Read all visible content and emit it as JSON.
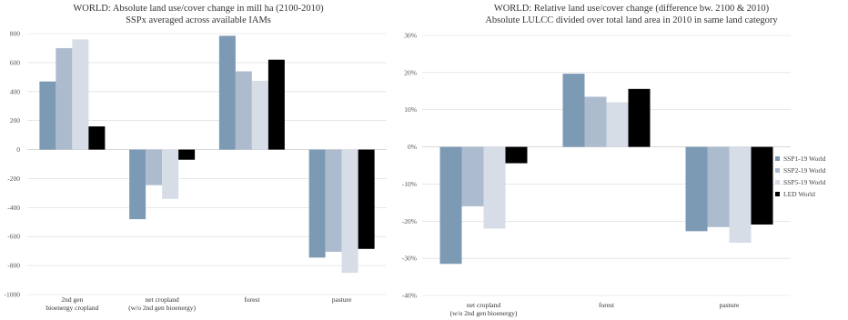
{
  "colors": {
    "SSP1-19 World": "#7d9ab5",
    "SSP2-19 World": "#adbbcf",
    "SSP5-19 World": "#d6dde7",
    "LED World": "#000000",
    "grid": "#d9d9d9",
    "axis": "#bfbfbf"
  },
  "chart_data": [
    {
      "type": "bar",
      "title": "WORLD: Absolute land use/cover change in mill ha (2100-2010)",
      "subtitle": "SSPx averaged across available IAMs",
      "categories": [
        "2nd gen\nbioenergy cropland",
        "net cropland\n(w/o 2nd gen bioenergy)",
        "forest",
        "pasture"
      ],
      "series": [
        {
          "name": "SSP1-19 World",
          "values": [
            470,
            -480,
            785,
            -745
          ]
        },
        {
          "name": "SSP2-19 World",
          "values": [
            700,
            -245,
            540,
            -705
          ]
        },
        {
          "name": "SSP5-19 World",
          "values": [
            760,
            -340,
            475,
            -850
          ]
        },
        {
          "name": "LED World",
          "values": [
            160,
            -70,
            620,
            -685
          ]
        }
      ],
      "yticks": [
        "800",
        "600",
        "400",
        "200",
        "0",
        "-200",
        "-400",
        "-600",
        "-800",
        "-1000"
      ],
      "ylim": [
        -1000,
        800
      ],
      "grid": true
    },
    {
      "type": "bar",
      "title": "WORLD: Relative land use/cover change (difference bw. 2100 & 2010)",
      "subtitle": "Absolute LULCC divided over total land area in 2010 in same land category",
      "categories": [
        "net cropland\n(w/o 2nd gen bioenergy)",
        "forest",
        "pasture"
      ],
      "series": [
        {
          "name": "SSP1-19 World",
          "values": [
            -31.5,
            19.7,
            -22.7
          ]
        },
        {
          "name": "SSP2-19 World",
          "values": [
            -16.0,
            13.5,
            -21.6
          ]
        },
        {
          "name": "SSP5-19 World",
          "values": [
            -22.0,
            12.0,
            -25.8
          ]
        },
        {
          "name": "LED World",
          "values": [
            -4.4,
            15.6,
            -20.9
          ]
        }
      ],
      "yticks": [
        "30%",
        "20%",
        "10%",
        "0%",
        "-10%",
        "-20%",
        "-30%",
        "-40%"
      ],
      "ylim": [
        -40,
        30
      ],
      "grid": true,
      "legend": "right"
    }
  ]
}
